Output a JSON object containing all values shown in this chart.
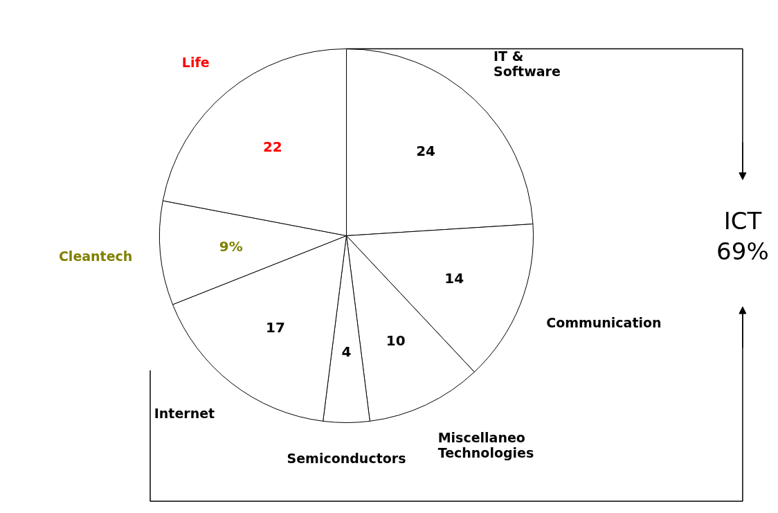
{
  "chart_data": {
    "type": "pie",
    "categories": [
      "IT & Software",
      "Communication",
      "Miscellaneo Technologies",
      "Semiconductors",
      "Internet",
      "Cleantech",
      "Life"
    ],
    "values": [
      24,
      14,
      10,
      4,
      17,
      9,
      22
    ],
    "value_labels": [
      "24",
      "14",
      "10",
      "4",
      "17",
      "9%",
      "22"
    ],
    "colors": [
      "#ffffff",
      "#ffffff",
      "#ffffff",
      "#ffffff",
      "#ffffff",
      "#ffffff",
      "#ffffff"
    ],
    "annotations": [
      "ICT\n69%"
    ]
  }
}
